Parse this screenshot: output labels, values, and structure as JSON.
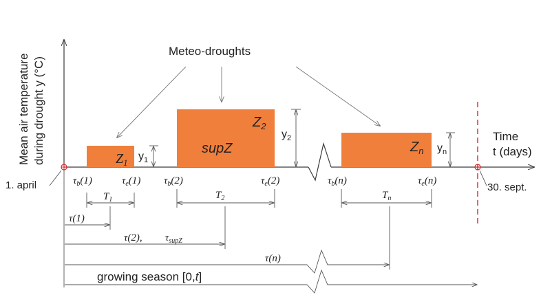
{
  "y_axis_label": [
    "Mean air temperature",
    "during drought y (°C)"
  ],
  "x_axis_label": [
    "Time",
    "t (days)"
  ],
  "start_label": "1. april",
  "end_label": "30. sept.",
  "callout": "Meteo-droughts",
  "droughts": [
    {
      "name": "Z",
      "sub": "1",
      "height_label": "y",
      "height_sub": "1",
      "begin": "τ",
      "begin_sub": "b",
      "begin_idx": "(1)",
      "end": "τ",
      "end_sub": "e",
      "end_idx": "(1)",
      "duration": "T",
      "duration_sub": "1",
      "onset": "τ(1)"
    },
    {
      "name": "Z",
      "sub": "2",
      "inner": "supZ",
      "height_label": "y",
      "height_sub": "2",
      "begin": "τ",
      "begin_sub": "b",
      "begin_idx": "(2)",
      "end": "τ",
      "end_sub": "e",
      "end_idx": "(2)",
      "duration": "T",
      "duration_sub": "2",
      "onset": "τ(2),",
      "onset_extra": "τ",
      "onset_extra_sub": "supZ"
    },
    {
      "name": "Z",
      "sub": "n",
      "height_label": "y",
      "height_sub": "n",
      "begin": "τ",
      "begin_sub": "b",
      "begin_idx": "(n)",
      "end": "τ",
      "end_sub": "e",
      "end_idx": "(n)",
      "duration": "T",
      "duration_sub": "n",
      "onset": "τ(n)"
    }
  ],
  "season": {
    "prefix": "growing season [0,",
    "var": "t",
    "suffix": "]"
  },
  "colors": {
    "drought": "#f07f3c",
    "end_marker": "#e0303a",
    "origin": "#d02a2a"
  }
}
